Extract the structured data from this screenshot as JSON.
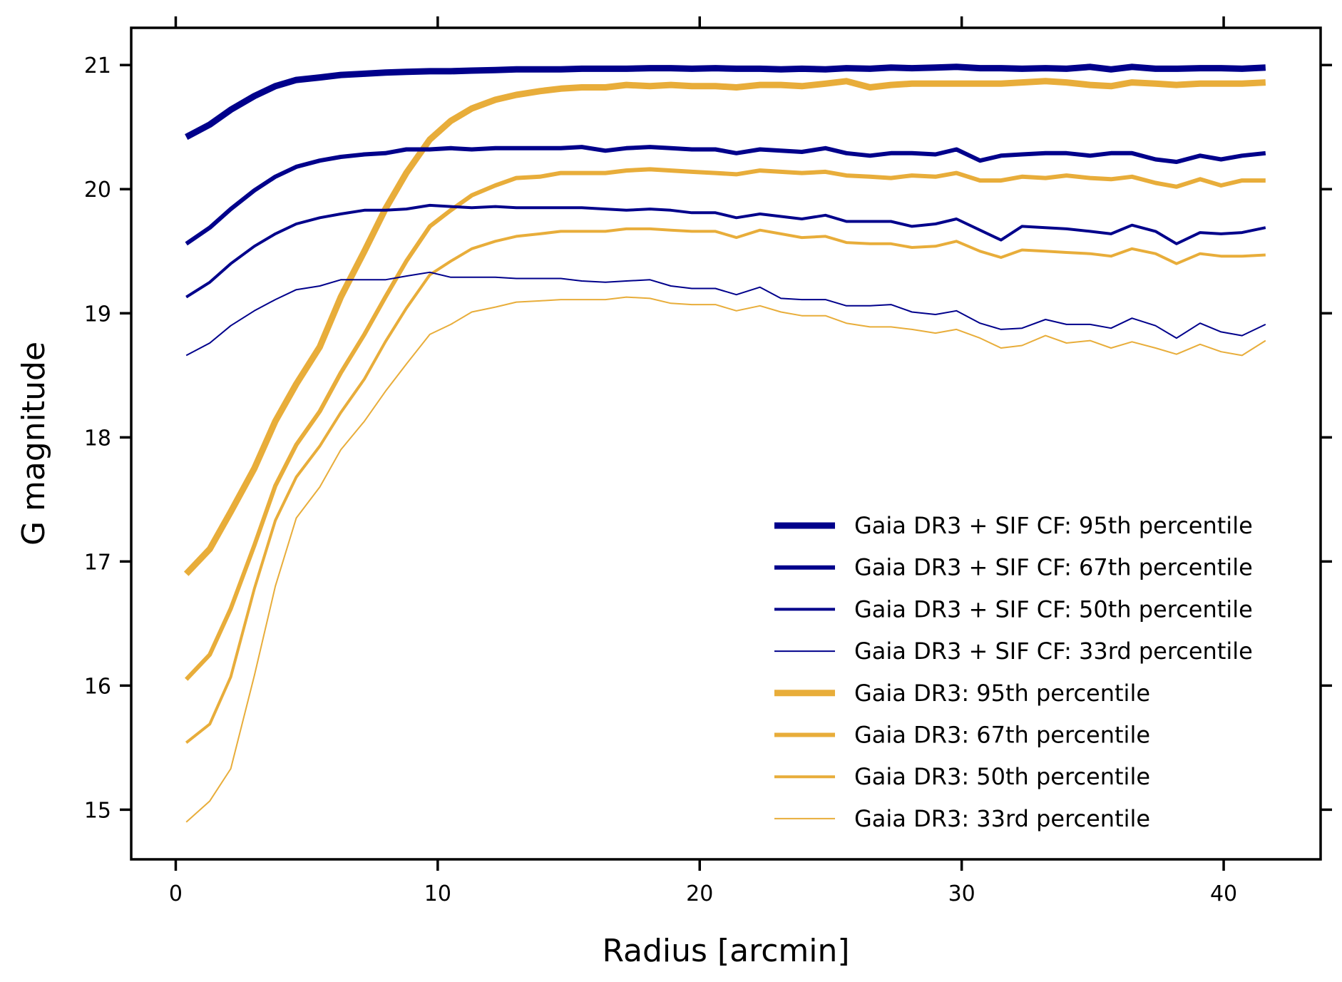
{
  "chart_data": {
    "type": "line",
    "title": "",
    "xlabel": "Radius [arcmin]",
    "ylabel": "G magnitude",
    "xlim": [
      -1.7,
      43.7
    ],
    "ylim": [
      14.6,
      21.3
    ],
    "xticks": [
      0,
      10,
      20,
      30,
      40
    ],
    "yticks": [
      15,
      16,
      17,
      18,
      19,
      20,
      21
    ],
    "grid": false,
    "legend_position": "lower-right",
    "x": [
      0.4,
      1.3,
      2.1,
      3.0,
      3.8,
      4.6,
      5.5,
      6.3,
      7.2,
      8.0,
      8.8,
      9.7,
      10.5,
      11.3,
      12.2,
      13.0,
      13.9,
      14.7,
      15.5,
      16.4,
      17.2,
      18.1,
      18.9,
      19.7,
      20.6,
      21.4,
      22.3,
      23.1,
      23.9,
      24.8,
      25.6,
      26.5,
      27.3,
      28.1,
      29.0,
      29.8,
      30.7,
      31.5,
      32.3,
      33.2,
      34.0,
      34.9,
      35.7,
      36.5,
      37.4,
      38.2,
      39.1,
      39.9,
      40.7,
      41.6
    ],
    "series": [
      {
        "name": "Gaia DR3 + SIF CF: 95th percentile",
        "color": "#00008b",
        "width": 9,
        "values": [
          20.42,
          20.52,
          20.64,
          20.75,
          20.83,
          20.88,
          20.9,
          20.92,
          20.93,
          20.94,
          20.945,
          20.95,
          20.95,
          20.955,
          20.96,
          20.965,
          20.965,
          20.965,
          20.97,
          20.97,
          20.97,
          20.975,
          20.975,
          20.97,
          20.975,
          20.97,
          20.97,
          20.965,
          20.97,
          20.965,
          20.975,
          20.97,
          20.98,
          20.975,
          20.98,
          20.985,
          20.975,
          20.975,
          20.97,
          20.975,
          20.97,
          20.985,
          20.965,
          20.985,
          20.97,
          20.97,
          20.975,
          20.975,
          20.97,
          20.98
        ]
      },
      {
        "name": "Gaia DR3 + SIF CF: 67th percentile",
        "color": "#00008b",
        "width": 6,
        "values": [
          19.56,
          19.69,
          19.84,
          19.99,
          20.1,
          20.18,
          20.23,
          20.26,
          20.28,
          20.29,
          20.32,
          20.32,
          20.33,
          20.32,
          20.33,
          20.33,
          20.33,
          20.33,
          20.34,
          20.31,
          20.33,
          20.34,
          20.33,
          20.32,
          20.32,
          20.29,
          20.32,
          20.31,
          20.3,
          20.33,
          20.29,
          20.27,
          20.29,
          20.29,
          20.28,
          20.32,
          20.23,
          20.27,
          20.28,
          20.29,
          20.29,
          20.27,
          20.29,
          20.29,
          20.24,
          20.22,
          20.27,
          20.24,
          20.27,
          20.29
        ]
      },
      {
        "name": "Gaia DR3 + SIF CF: 50th percentile",
        "color": "#00008b",
        "width": 4,
        "values": [
          19.13,
          19.25,
          19.4,
          19.54,
          19.64,
          19.72,
          19.77,
          19.8,
          19.83,
          19.83,
          19.84,
          19.87,
          19.86,
          19.85,
          19.86,
          19.85,
          19.85,
          19.85,
          19.85,
          19.84,
          19.83,
          19.84,
          19.83,
          19.81,
          19.81,
          19.77,
          19.8,
          19.78,
          19.76,
          19.79,
          19.74,
          19.74,
          19.74,
          19.7,
          19.72,
          19.76,
          19.67,
          19.59,
          19.7,
          19.69,
          19.68,
          19.66,
          19.64,
          19.71,
          19.66,
          19.56,
          19.65,
          19.64,
          19.65,
          19.69
        ]
      },
      {
        "name": "Gaia DR3 + SIF CF: 33rd percentile",
        "color": "#00008b",
        "width": 2,
        "values": [
          18.66,
          18.76,
          18.9,
          19.02,
          19.11,
          19.19,
          19.22,
          19.27,
          19.27,
          19.27,
          19.3,
          19.33,
          19.29,
          19.29,
          19.29,
          19.28,
          19.28,
          19.28,
          19.26,
          19.25,
          19.26,
          19.27,
          19.22,
          19.2,
          19.2,
          19.15,
          19.21,
          19.12,
          19.11,
          19.11,
          19.06,
          19.06,
          19.07,
          19.01,
          18.99,
          19.02,
          18.92,
          18.87,
          18.88,
          18.95,
          18.91,
          18.91,
          18.88,
          18.96,
          18.9,
          18.8,
          18.92,
          18.85,
          18.82,
          18.91
        ]
      },
      {
        "name": "Gaia DR3: 95th percentile",
        "color": "#e8ad3a",
        "width": 9,
        "values": [
          16.9,
          17.1,
          17.4,
          17.75,
          18.13,
          18.43,
          18.73,
          19.13,
          19.5,
          19.84,
          20.13,
          20.4,
          20.55,
          20.65,
          20.72,
          20.76,
          20.79,
          20.81,
          20.82,
          20.82,
          20.84,
          20.83,
          20.84,
          20.83,
          20.83,
          20.82,
          20.84,
          20.84,
          20.83,
          20.85,
          20.87,
          20.82,
          20.84,
          20.85,
          20.85,
          20.85,
          20.85,
          20.85,
          20.86,
          20.87,
          20.86,
          20.84,
          20.83,
          20.86,
          20.85,
          20.84,
          20.85,
          20.85,
          20.85,
          20.86
        ]
      },
      {
        "name": "Gaia DR3: 67th percentile",
        "color": "#e8ad3a",
        "width": 6,
        "values": [
          16.05,
          16.25,
          16.62,
          17.13,
          17.61,
          17.94,
          18.21,
          18.52,
          18.83,
          19.13,
          19.42,
          19.7,
          19.83,
          19.95,
          20.03,
          20.09,
          20.1,
          20.13,
          20.13,
          20.13,
          20.15,
          20.16,
          20.15,
          20.14,
          20.13,
          20.12,
          20.15,
          20.14,
          20.13,
          20.14,
          20.11,
          20.1,
          20.09,
          20.11,
          20.1,
          20.13,
          20.07,
          20.07,
          20.1,
          20.09,
          20.11,
          20.09,
          20.08,
          20.1,
          20.05,
          20.02,
          20.08,
          20.03,
          20.07,
          20.07
        ]
      },
      {
        "name": "Gaia DR3: 50th percentile",
        "color": "#e8ad3a",
        "width": 4,
        "values": [
          15.54,
          15.69,
          16.07,
          16.78,
          17.33,
          17.68,
          17.93,
          18.2,
          18.47,
          18.77,
          19.04,
          19.31,
          19.42,
          19.52,
          19.58,
          19.62,
          19.64,
          19.66,
          19.66,
          19.66,
          19.68,
          19.68,
          19.67,
          19.66,
          19.66,
          19.61,
          19.67,
          19.64,
          19.61,
          19.62,
          19.57,
          19.56,
          19.56,
          19.53,
          19.54,
          19.58,
          19.5,
          19.45,
          19.51,
          19.5,
          19.49,
          19.48,
          19.46,
          19.52,
          19.48,
          19.4,
          19.48,
          19.46,
          19.46,
          19.47
        ]
      },
      {
        "name": "Gaia DR3: 33rd percentile",
        "color": "#e8ad3a",
        "width": 2,
        "values": [
          14.9,
          15.07,
          15.33,
          16.08,
          16.8,
          17.35,
          17.6,
          17.9,
          18.13,
          18.37,
          18.59,
          18.83,
          18.91,
          19.01,
          19.05,
          19.09,
          19.1,
          19.11,
          19.11,
          19.11,
          19.13,
          19.12,
          19.08,
          19.07,
          19.07,
          19.02,
          19.06,
          19.01,
          18.98,
          18.98,
          18.92,
          18.89,
          18.89,
          18.87,
          18.84,
          18.87,
          18.8,
          18.72,
          18.74,
          18.82,
          18.76,
          18.78,
          18.72,
          18.77,
          18.72,
          18.67,
          18.75,
          18.69,
          18.66,
          18.78
        ]
      }
    ]
  }
}
